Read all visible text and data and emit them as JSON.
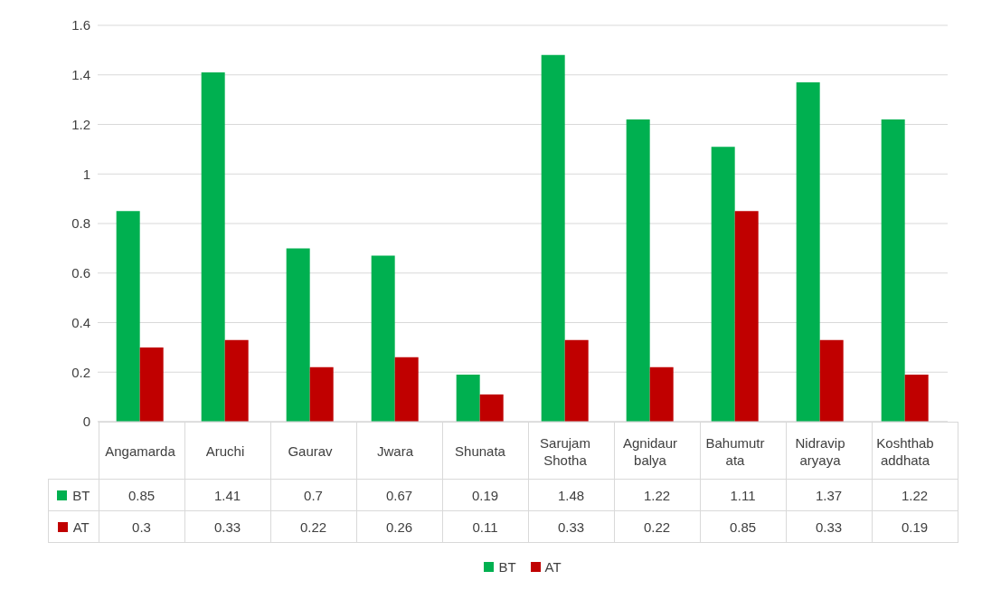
{
  "chart_data": {
    "type": "bar",
    "categories": [
      "Angamarda",
      "Aruchi",
      "Gaurav",
      "Jwara",
      "Shunata",
      "Sarujam Shotha",
      "Agnidaurbalya",
      "Bahumutrata",
      "Nidraviparyaya",
      "Koshthabaddhata"
    ],
    "series": [
      {
        "name": "BT",
        "color": "#00b050",
        "values": [
          0.85,
          1.41,
          0.7,
          0.67,
          0.19,
          1.48,
          1.22,
          1.11,
          1.37,
          1.22
        ]
      },
      {
        "name": "AT",
        "color": "#c00000",
        "values": [
          0.3,
          0.33,
          0.22,
          0.26,
          0.11,
          0.33,
          0.22,
          0.85,
          0.33,
          0.19
        ]
      }
    ],
    "ylim": [
      0,
      1.6
    ],
    "yticks": [
      0,
      0.2,
      0.4,
      0.6,
      0.8,
      1,
      1.2,
      1.4,
      1.6
    ],
    "grid": "y",
    "legend": "bottom",
    "data_labels": true
  }
}
